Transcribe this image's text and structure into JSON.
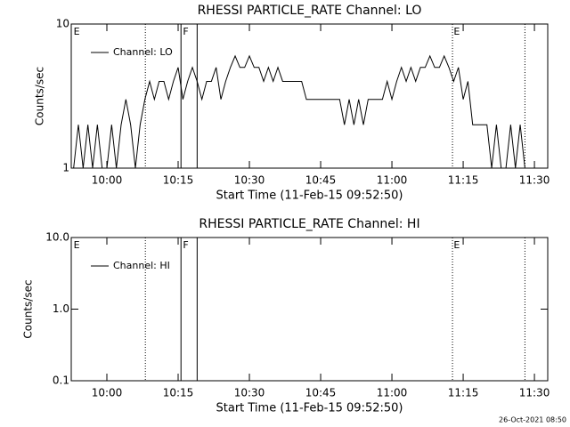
{
  "chart_data": [
    {
      "type": "line",
      "title": "RHESSI PARTICLE_RATE Channel: LO",
      "x_label": "Start Time (11-Feb-15 09:52:50)",
      "y_label": "Counts/sec",
      "log_y": true,
      "xlim": [
        -7.5,
        92.8
      ],
      "ylim": [
        1,
        10
      ],
      "xticks": [
        {
          "value": 0,
          "label": "10:00"
        },
        {
          "value": 15,
          "label": "10:15"
        },
        {
          "value": 30,
          "label": "10:30"
        },
        {
          "value": 45,
          "label": "10:45"
        },
        {
          "value": 60,
          "label": "11:00"
        },
        {
          "value": 75,
          "label": "11:15"
        },
        {
          "value": 90,
          "label": "11:30"
        }
      ],
      "yticks": [
        1,
        10
      ],
      "x": [
        -7,
        -6,
        -5,
        -4,
        -3,
        -2,
        -1,
        0,
        1,
        2,
        3,
        4,
        5,
        6,
        7,
        8,
        9,
        10,
        11,
        12,
        13,
        14,
        15,
        16,
        17,
        18,
        19,
        20,
        21,
        22,
        23,
        24,
        25,
        26,
        27,
        28,
        29,
        30,
        31,
        32,
        33,
        34,
        35,
        36,
        37,
        38,
        39,
        40,
        41,
        42,
        43,
        44,
        45,
        46,
        47,
        48,
        49,
        50,
        51,
        52,
        53,
        54,
        55,
        56,
        57,
        58,
        59,
        60,
        61,
        62,
        63,
        64,
        65,
        66,
        67,
        68,
        69,
        70,
        71,
        72,
        73,
        74,
        75,
        76,
        77,
        78,
        79,
        80,
        81,
        82,
        83,
        84,
        85,
        86,
        87,
        88
      ],
      "series": [
        {
          "name": "Channel: LO",
          "color": "#000000",
          "values": [
            1,
            2,
            1,
            2,
            1,
            2,
            1,
            1,
            2,
            1,
            2,
            3,
            2,
            1,
            2,
            3,
            4,
            3,
            4,
            4,
            3,
            4,
            5,
            3,
            4,
            5,
            4,
            3,
            4,
            4,
            5,
            3,
            4,
            5,
            6,
            5,
            5,
            6,
            5,
            5,
            4,
            5,
            4,
            5,
            4,
            4,
            4,
            4,
            4,
            3,
            3,
            3,
            3,
            3,
            3,
            3,
            3,
            2,
            3,
            2,
            3,
            2,
            3,
            3,
            3,
            3,
            4,
            3,
            4,
            5,
            4,
            5,
            4,
            5,
            5,
            6,
            5,
            5,
            6,
            5,
            4,
            5,
            3,
            4,
            2,
            2,
            2,
            2,
            1,
            2,
            1,
            1,
            2,
            1,
            2,
            1
          ]
        }
      ],
      "vlines": [
        {
          "x": 8.1,
          "style": "dotted"
        },
        {
          "x": 15.6,
          "style": "solid"
        },
        {
          "x": 19,
          "style": "solid"
        },
        {
          "x": 72.75,
          "style": "dotted"
        },
        {
          "x": 88,
          "style": "dotted"
        }
      ],
      "flags": [
        {
          "x": -7,
          "label": "E"
        },
        {
          "x": 16,
          "label": "F"
        },
        {
          "x": 73,
          "label": "E"
        }
      ]
    },
    {
      "type": "line",
      "title": "RHESSI PARTICLE_RATE Channel: HI",
      "x_label": "Start Time (11-Feb-15 09:52:50)",
      "y_label": "Counts/sec",
      "log_y": true,
      "xlim": [
        -7.5,
        92.8
      ],
      "ylim": [
        0.1,
        10
      ],
      "xticks": [
        {
          "value": 0,
          "label": "10:00"
        },
        {
          "value": 15,
          "label": "10:15"
        },
        {
          "value": 30,
          "label": "10:30"
        },
        {
          "value": 45,
          "label": "10:45"
        },
        {
          "value": 60,
          "label": "11:00"
        },
        {
          "value": 75,
          "label": "11:15"
        },
        {
          "value": 90,
          "label": "11:30"
        }
      ],
      "yticks": [
        {
          "value": 0.1,
          "label": "0.1"
        },
        {
          "value": 1,
          "label": "1.0"
        },
        {
          "value": 10,
          "label": "10.0"
        }
      ],
      "x": [],
      "series": [
        {
          "name": "Channel: HI",
          "color": "#000000",
          "values": []
        }
      ],
      "vlines": [
        {
          "x": 8.1,
          "style": "dotted"
        },
        {
          "x": 15.6,
          "style": "solid"
        },
        {
          "x": 19,
          "style": "solid"
        },
        {
          "x": 72.75,
          "style": "dotted"
        },
        {
          "x": 88,
          "style": "dotted"
        }
      ],
      "flags": [
        {
          "x": -7,
          "label": "E"
        },
        {
          "x": 16,
          "label": "F"
        },
        {
          "x": 73,
          "label": "E"
        }
      ]
    }
  ],
  "footer": "26-Oct-2021 08:50"
}
